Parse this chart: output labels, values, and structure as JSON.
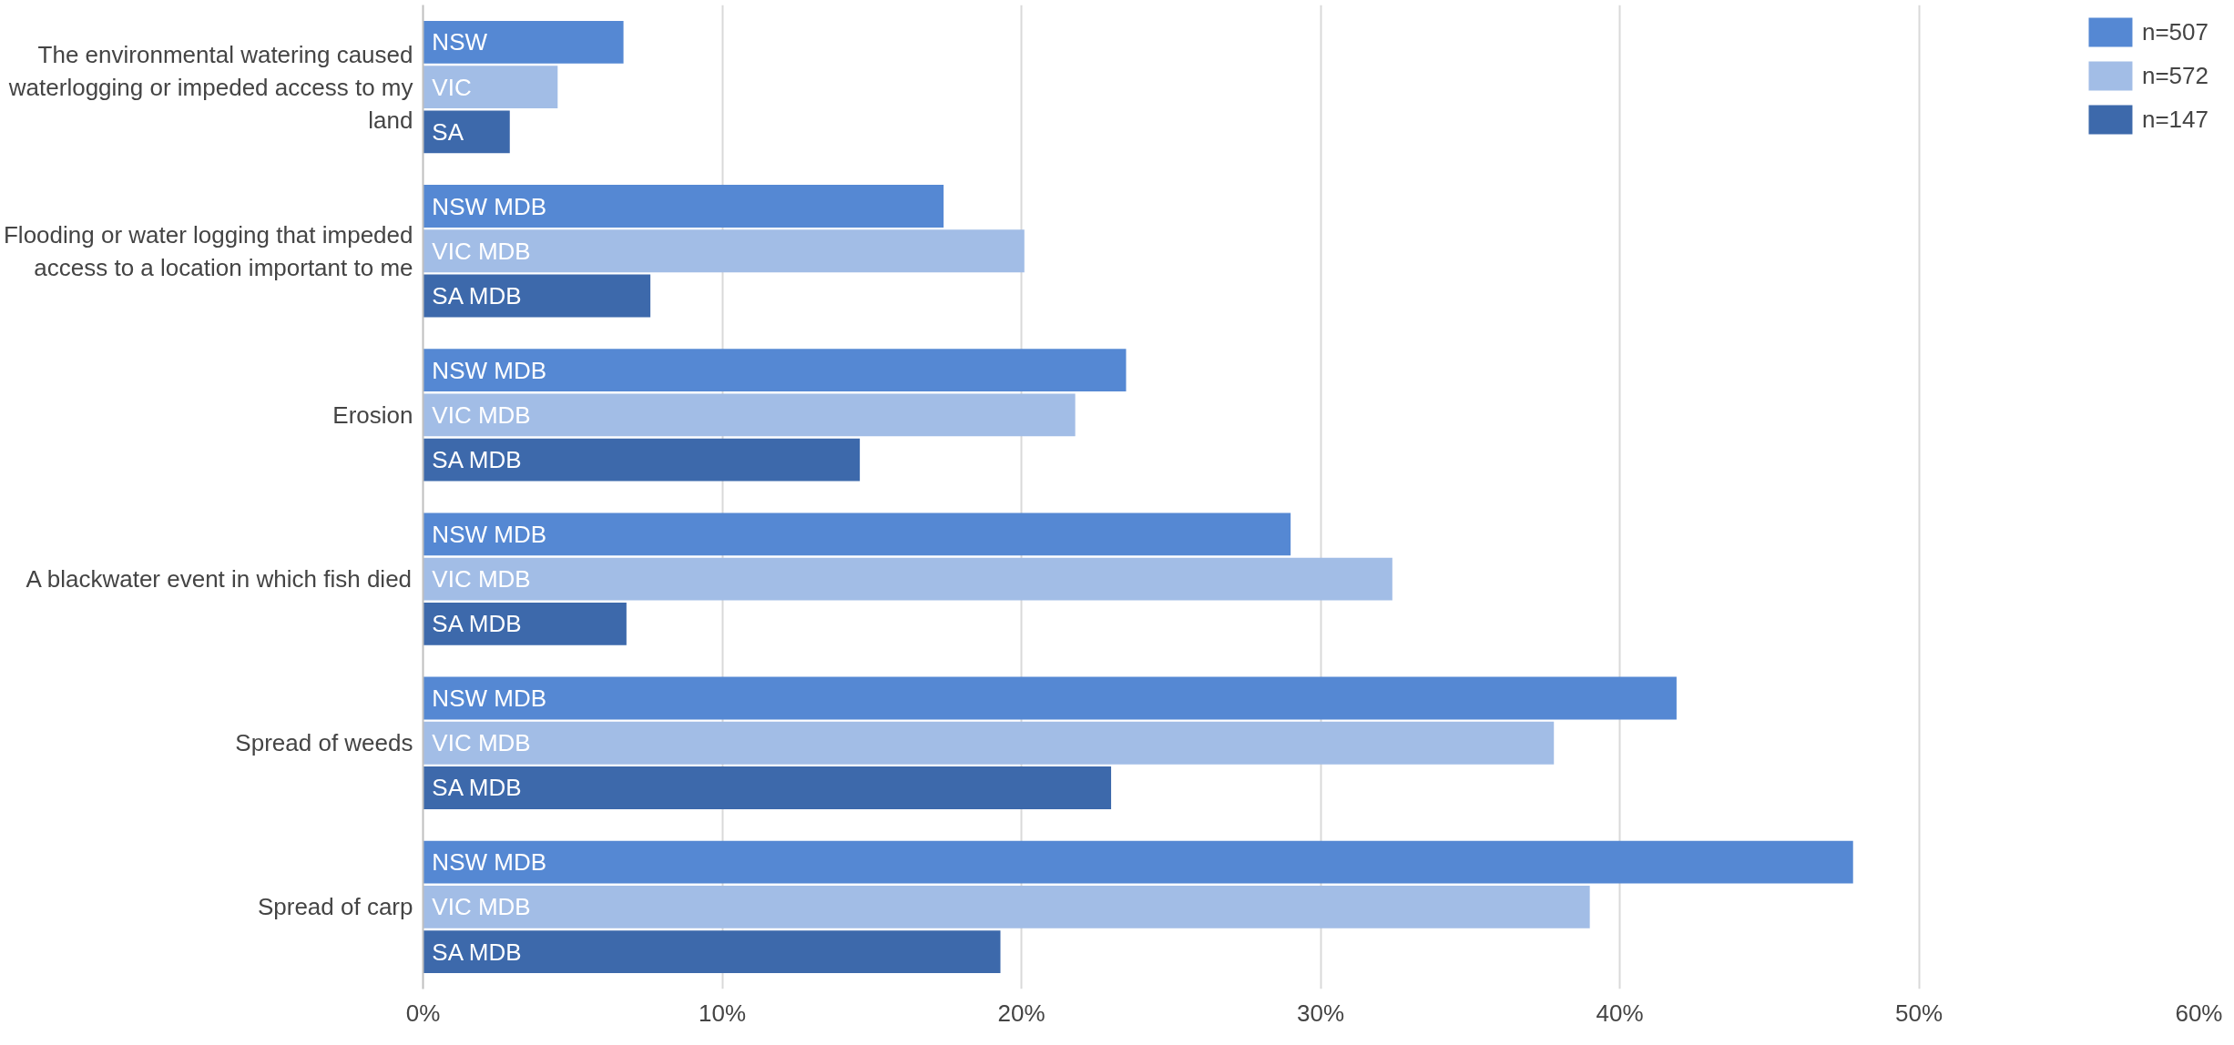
{
  "chart_data": {
    "type": "bar",
    "orientation": "horizontal",
    "categories": [
      "The environmental watering caused waterlogging or impeded access to my land",
      "Flooding or water logging that impeded access to a location important to me",
      "Erosion",
      "A blackwater event in which fish died",
      "Spread of weeds",
      "Spread of carp"
    ],
    "series": [
      {
        "name": "n=507",
        "color": "#5588d3",
        "values": [
          6.7,
          17.4,
          23.5,
          29.0,
          41.9,
          47.8
        ],
        "value_labels": [
          "NSW",
          "NSW MDB",
          "NSW MDB",
          "NSW MDB",
          "NSW MDB",
          "NSW MDB"
        ]
      },
      {
        "name": "n=572",
        "color": "#a2bde6",
        "values": [
          4.5,
          20.1,
          21.8,
          32.4,
          37.8,
          39.0
        ],
        "value_labels": [
          "VIC",
          "VIC MDB",
          "VIC MDB",
          "VIC MDB",
          "VIC MDB",
          "VIC MDB"
        ]
      },
      {
        "name": "n=147",
        "color": "#3d69ab",
        "values": [
          2.9,
          7.6,
          14.6,
          6.8,
          23.0,
          19.3
        ],
        "value_labels": [
          "SA",
          "SA MDB",
          "SA MDB",
          "SA MDB",
          "SA MDB",
          "SA MDB"
        ]
      }
    ],
    "xlim": [
      0,
      60
    ],
    "xticks": [
      {
        "value": 0,
        "label": "0%"
      },
      {
        "value": 10,
        "label": "10%"
      },
      {
        "value": 20,
        "label": "20%"
      },
      {
        "value": 30,
        "label": "30%"
      },
      {
        "value": 40,
        "label": "40%"
      },
      {
        "value": 50,
        "label": "50%"
      },
      {
        "value": 60,
        "label": "60%"
      }
    ],
    "grid": "x",
    "legend": "top right"
  }
}
